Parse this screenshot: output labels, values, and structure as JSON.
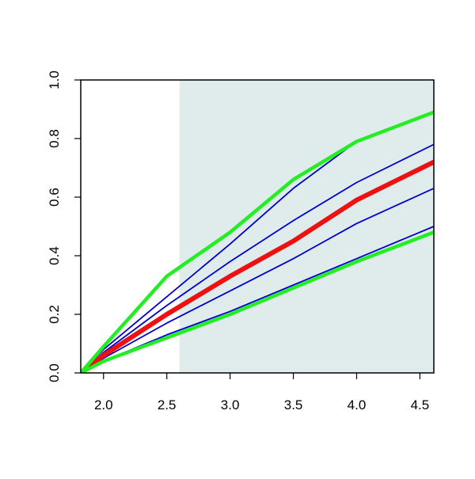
{
  "chart_data": {
    "type": "line",
    "x": [
      1.82,
      2.0,
      2.5,
      3.0,
      3.5,
      4.0,
      4.61
    ],
    "series": [
      {
        "color": "#0000cc",
        "values": [
          0,
          0.08,
          0.26,
          0.44,
          0.63,
          0.79,
          0.89
        ]
      },
      {
        "color": "#0000cc",
        "values": [
          0,
          0.07,
          0.23,
          0.38,
          0.52,
          0.65,
          0.78
        ]
      },
      {
        "color": "#0000cc",
        "values": [
          0,
          0.05,
          0.17,
          0.28,
          0.39,
          0.51,
          0.63
        ]
      },
      {
        "color": "#0000cc",
        "values": [
          0,
          0.04,
          0.13,
          0.21,
          0.3,
          0.39,
          0.5
        ]
      },
      {
        "color": "#ee1111",
        "values": [
          0,
          0.06,
          0.2,
          0.33,
          0.45,
          0.59,
          0.72
        ]
      },
      {
        "color": "#22ee22",
        "values": [
          0,
          0.09,
          0.33,
          0.48,
          0.66,
          0.79,
          0.89
        ]
      },
      {
        "color": "#22ee22",
        "values": [
          0,
          0.04,
          0.12,
          0.2,
          0.29,
          0.38,
          0.48
        ]
      }
    ],
    "highlight": {
      "from": 2.6,
      "to": 4.61,
      "color": "#dfeceb"
    },
    "xlim": [
      1.82,
      4.61
    ],
    "ylim": [
      0,
      1
    ],
    "xticks": [
      {
        "value": 2,
        "label": "2.0"
      },
      {
        "value": 2.5,
        "label": "2.5"
      },
      {
        "value": 3,
        "label": "3.0"
      },
      {
        "value": 3.5,
        "label": "3.5"
      },
      {
        "value": 4,
        "label": "4.0"
      },
      {
        "value": 4.5,
        "label": "4.5"
      }
    ],
    "yticks": [
      {
        "value": 0,
        "label": "0.0"
      },
      0.2,
      0.4,
      0.6,
      0.8,
      {
        "value": 1,
        "label": "1.0"
      }
    ]
  }
}
